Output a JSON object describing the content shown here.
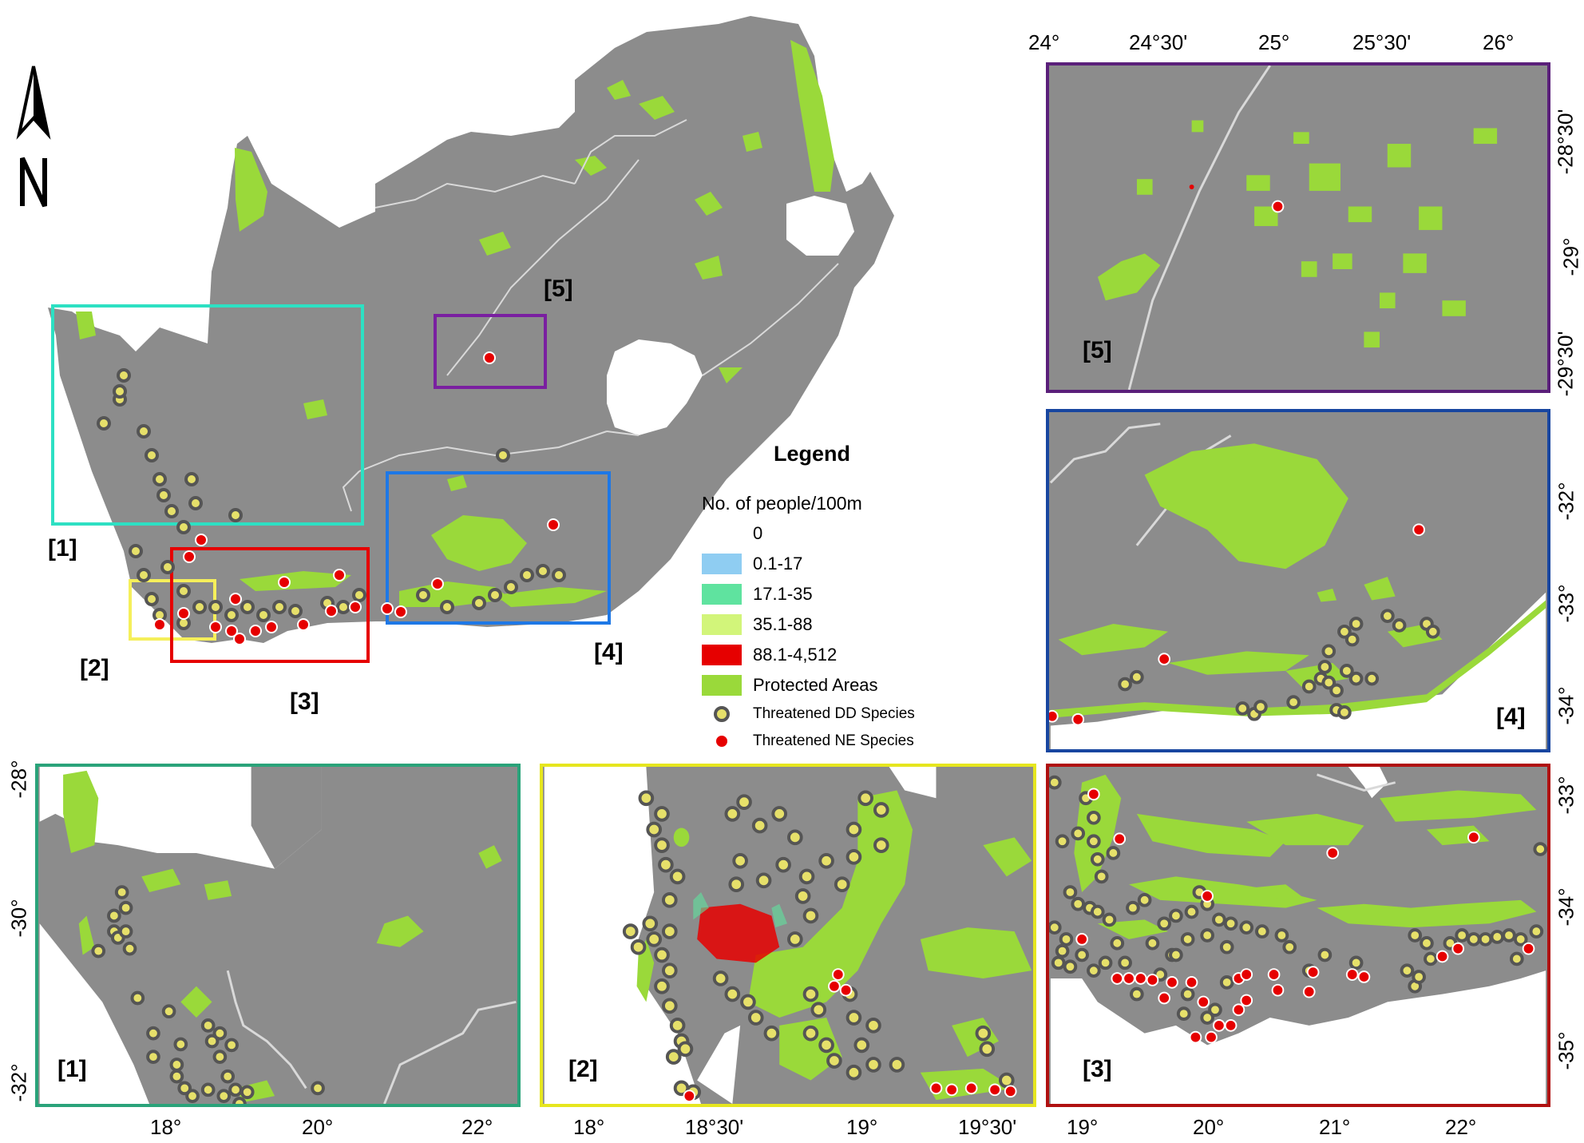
{
  "legend": {
    "title": "Legend",
    "subtitle": "No. of people/100m",
    "classes": [
      {
        "label": "0",
        "color": "#ffffff"
      },
      {
        "label": "0.1-17",
        "color": "#8fcdf2"
      },
      {
        "label": "17.1-35",
        "color": "#5fe39f"
      },
      {
        "label": "35.1-88",
        "color": "#d2f57a"
      },
      {
        "label": "88.1-4,512",
        "color": "#e60000"
      },
      {
        "label": "Protected Areas",
        "color": "#9ad93a"
      }
    ],
    "points": [
      {
        "label": "Threatened DD Species",
        "fill": "#e6e06a",
        "stroke": "#555555"
      },
      {
        "label": "Threatened NE Species",
        "fill": "#e60000",
        "stroke": "#ffffff"
      }
    ]
  },
  "main_map": {
    "inset_labels": [
      "[1]",
      "[2]",
      "[3]",
      "[4]",
      "[5]"
    ],
    "box_colors": {
      "1": "#2de0c3",
      "2": "#f5ef5a",
      "3": "#e60000",
      "4": "#1e78e6",
      "5": "#7a1fa0"
    },
    "north_arrow_letter": "N"
  },
  "insets": {
    "panel1": {
      "label": "[1]",
      "border": "#2aa37a",
      "x_ticks": [
        "18°",
        "20°",
        "22°"
      ],
      "y_ticks": [
        "-28°",
        "-30°",
        "-32°"
      ]
    },
    "panel2": {
      "label": "[2]",
      "border": "#e6e61e",
      "x_ticks": [
        "18°",
        "18°30'",
        "19°",
        "19°30'"
      ]
    },
    "panel3": {
      "label": "[3]",
      "border": "#b01010",
      "x_ticks": [
        "19°",
        "20°",
        "21°",
        "22°"
      ],
      "y_ticks": [
        "-33°",
        "-34°",
        "-35°"
      ]
    },
    "panel4": {
      "label": "[4]",
      "border": "#1846a0",
      "y_ticks": [
        "-32°",
        "-33°",
        "-34°"
      ]
    },
    "panel5": {
      "label": "[5]",
      "border": "#5a1f7a",
      "x_ticks": [
        "24°",
        "24°30'",
        "25°",
        "25°30'",
        "26°"
      ],
      "y_ticks": [
        "-28°30'",
        "-29°",
        "-29°30'"
      ]
    }
  }
}
